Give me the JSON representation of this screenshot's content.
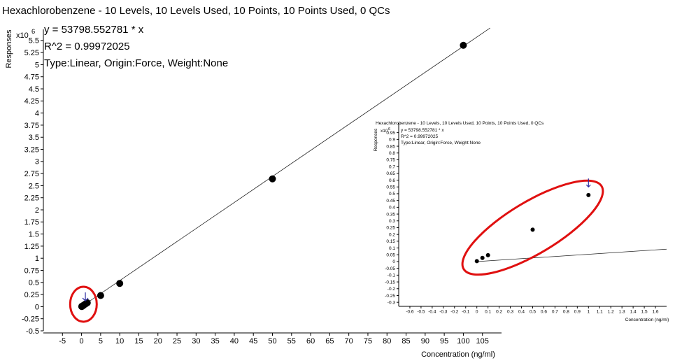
{
  "chart_data": [
    {
      "type": "scatter",
      "title": "Hexachlorobenzene - 10 Levels, 10 Levels Used, 10 Points, 10 Points Used, 0 QCs",
      "xlabel": "Concentration (ng/ml)",
      "ylabel": "Responses",
      "y_multiplier_label": "x10",
      "y_exponent_label": "6",
      "equation": "y = 53798.552781 * x",
      "r_squared": "R^2 = 0.99972025",
      "fit_info": "Type:Linear, Origin:Force, Weight:None",
      "xlim": [
        -10,
        110
      ],
      "ylim": [
        -0.5,
        5.7
      ],
      "x_ticks": [
        "-5",
        "0",
        "5",
        "10",
        "15",
        "20",
        "25",
        "30",
        "35",
        "40",
        "45",
        "50",
        "55",
        "60",
        "65",
        "70",
        "75",
        "80",
        "85",
        "90",
        "95",
        "100",
        "105"
      ],
      "y_ticks": [
        "-0.5",
        "-0.25",
        "0",
        "0.25",
        "0.5",
        "0.75",
        "1",
        "1.25",
        "1.5",
        "1.75",
        "2",
        "2.25",
        "2.5",
        "2.75",
        "3",
        "3.25",
        "3.5",
        "3.75",
        "4",
        "4.25",
        "4.5",
        "4.75",
        "5",
        "5.25",
        "5.5"
      ],
      "series": [
        {
          "x": [
            0.05,
            0.1,
            0.2,
            0.5,
            1,
            1.5,
            5,
            10,
            50,
            100
          ],
          "y": [
            0.003,
            0.005,
            0.011,
            0.027,
            0.054,
            0.08,
            0.23,
            0.48,
            2.64,
            5.4
          ]
        }
      ],
      "fit_line": {
        "slope": 0.053798552781,
        "x_range": [
          0,
          107
        ]
      },
      "annotations": [
        {
          "type": "ellipse",
          "color": "#e01010",
          "around_x": 0.5,
          "around_y": 0.05
        },
        {
          "type": "arrow",
          "color": "#2a2aa0",
          "points_to_x": 1,
          "points_to_y": 0.12
        }
      ]
    },
    {
      "type": "scatter",
      "title": "Hexachlorobenzene - 10 Levels, 10 Levels Used, 10 Points, 10 Points Used, 0 QCs",
      "xlabel": "Concentration (ng/ml)",
      "ylabel": "Responses",
      "y_multiplier_label": "x10",
      "y_exponent_label": "6",
      "equation": "y = 53798.552781 * x",
      "r_squared": "R^2 = 0.99972025",
      "fit_info": "Type:Linear, Origin:Force, Weight:None",
      "xlim": [
        -0.7,
        1.7
      ],
      "ylim": [
        -0.33,
        1.01
      ],
      "x_ticks": [
        "-0.6",
        "-0.5",
        "-0.4",
        "-0.3",
        "-0.2",
        "-0.1",
        "0",
        "0.1",
        "0.2",
        "0.3",
        "0.4",
        "0.5",
        "0.6",
        "0.7",
        "0.8",
        "0.9",
        "1",
        "1.1",
        "1.2",
        "1.3",
        "1.4",
        "1.5",
        "1.6"
      ],
      "y_ticks": [
        "-0.3",
        "-0.25",
        "-0.2",
        "-0.15",
        "-0.1",
        "-0.05",
        "0",
        "0.05",
        "0.1",
        "0.15",
        "0.2",
        "0.25",
        "0.3",
        "0.35",
        "0.4",
        "0.45",
        "0.5",
        "0.55",
        "0.6",
        "0.65",
        "0.7",
        "0.75",
        "0.8",
        "0.85",
        "0.9",
        "0.95"
      ],
      "series": [
        {
          "x": [
            0,
            0.05,
            0.1,
            0.5,
            1
          ],
          "y": [
            0.003,
            0.027,
            0.047,
            0.235,
            0.49
          ]
        }
      ],
      "fit_line": {
        "slope": 0.053798552781,
        "x_range": [
          0,
          1.7
        ]
      },
      "annotations": [
        {
          "type": "ellipse",
          "color": "#e01010",
          "around_x": 0.5,
          "around_y": 0.25
        },
        {
          "type": "arrow",
          "color": "#2a2aa0",
          "points_to_x": 1,
          "points_to_y": 0.55
        }
      ]
    }
  ]
}
